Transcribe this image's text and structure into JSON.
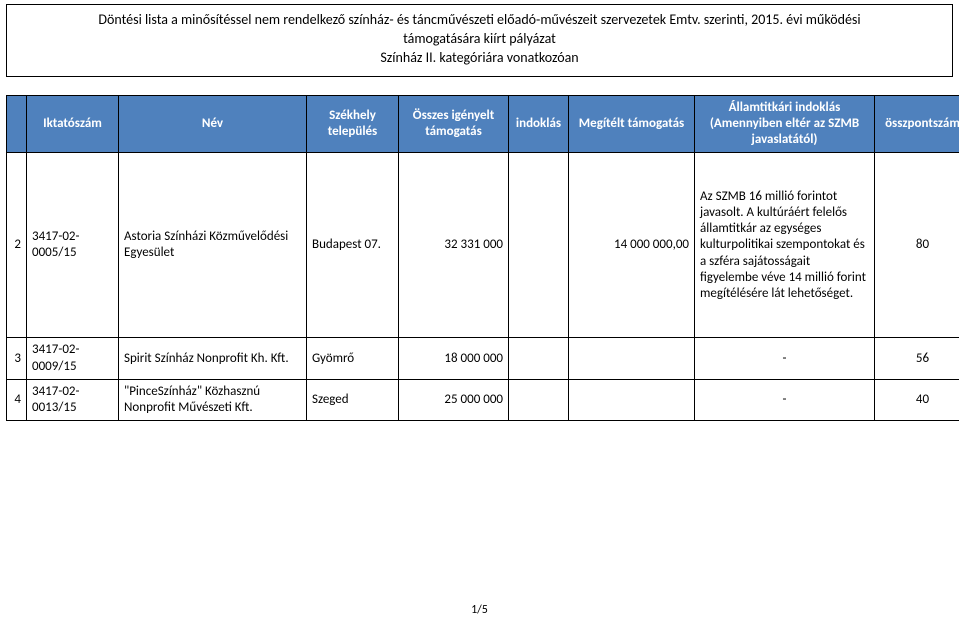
{
  "title": {
    "line1": "Döntési lista a minősítéssel nem rendelkező színház- és táncművészeti előadó-művészeit szervezetek Emtv. szerinti, 2015. évi működési",
    "line2": "támogatására kiírt pályázat",
    "line3": "Színház II. kategóriára vonatkozóan"
  },
  "headers": {
    "iktatoszam": "Iktatószám",
    "nev": "Név",
    "szekhely": "Székhely település",
    "osszes": "Összes igényelt támogatás",
    "indoklas": "indoklás",
    "megitelt": "Megítélt támogatás",
    "allamtitkari": "Államtitkári indoklás (Amennyiben eltér az SZMB javaslatától)",
    "osszpontszam": "összpontszám"
  },
  "rows": [
    {
      "num": "2",
      "iktatoszam": "3417-02-0005/15",
      "nev": "Astoria Színházi Közművelődési Egyesület",
      "szekhely": "Budapest 07.",
      "osszes": "32 331 000",
      "indoklas": "",
      "megitelt": "14 000 000,00",
      "allamtitkari": "Az SZMB 16 millió forintot javasolt. A kultúráért felelős államtitkár az egységes kulturpolitikai szempontokat és a szféra sajátosságait figyelembe véve 14 millió forint megítélésére lát lehetőséget.",
      "osszpontszam": "80"
    },
    {
      "num": "3",
      "iktatoszam": "3417-02-0009/15",
      "nev": "Spirit Színház Nonprofit Kh. Kft.",
      "szekhely": "Gyömrő",
      "osszes": "18 000 000",
      "indoklas": "",
      "megitelt": "",
      "allamtitkari": "-",
      "osszpontszam": "56"
    },
    {
      "num": "4",
      "iktatoszam": "3417-02-0013/15",
      "nev": "\"PinceSzínház\" Közhasznú Nonprofit Művészeti Kft.",
      "szekhely": "Szeged",
      "osszes": "25 000 000",
      "indoklas": "",
      "megitelt": "",
      "allamtitkari": "-",
      "osszpontszam": "40"
    }
  ],
  "footer": "1/5",
  "colors": {
    "header_bg": "#4f81bd",
    "header_text": "#ffffff",
    "border": "#000000",
    "text": "#000000",
    "background": "#ffffff"
  }
}
